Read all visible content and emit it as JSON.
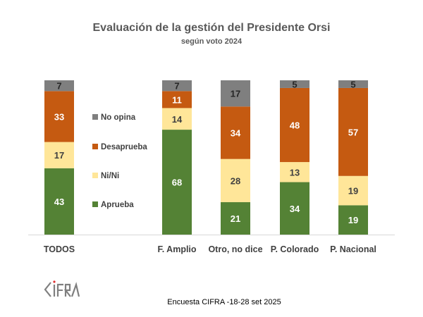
{
  "chart_data": {
    "type": "bar",
    "stacked": true,
    "title": "Evaluación de la gestión del Presidente Orsi",
    "subtitle": "según voto 2024",
    "categories": [
      "TODOS",
      "F. Amplio",
      "Otro, no dice",
      "P. Colorado",
      "P. Nacional"
    ],
    "series": [
      {
        "name": "Aprueba",
        "color": "#548235",
        "values": [
          43,
          68,
          21,
          34,
          19
        ]
      },
      {
        "name": "Ni/Ni",
        "color": "#ffe699",
        "values": [
          17,
          14,
          28,
          13,
          19
        ]
      },
      {
        "name": "Desaprueba",
        "color": "#c55a11",
        "values": [
          33,
          11,
          34,
          48,
          57
        ]
      },
      {
        "name": "No opina",
        "color": "#7f7f7f",
        "values": [
          7,
          7,
          17,
          5,
          5
        ]
      }
    ],
    "ylim": [
      0,
      100
    ],
    "grid": false,
    "legend_placement": "between first and second bar"
  },
  "source": "Encuesta CIFRA -18-28 set 2025",
  "logo": "CIFRA"
}
